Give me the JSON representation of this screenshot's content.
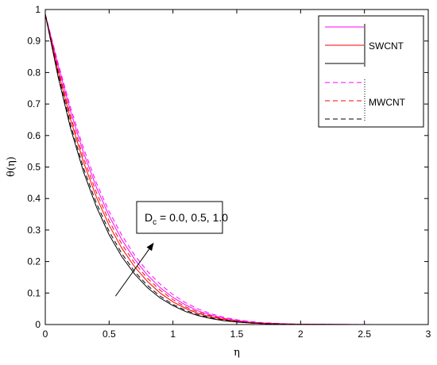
{
  "chart_data": {
    "type": "line",
    "title": "",
    "xlabel": "η",
    "ylabel": "θ(η)",
    "xlim": [
      0,
      3
    ],
    "ylim": [
      0,
      1
    ],
    "xticks": [
      0,
      0.5,
      1,
      1.5,
      2,
      2.5,
      3
    ],
    "xtick_labels": [
      "0",
      "0.5",
      "1",
      "1.5",
      "2",
      "2.5",
      "3"
    ],
    "yticks": [
      0,
      0.1,
      0.2,
      0.3,
      0.4,
      0.5,
      0.6,
      0.7,
      0.8,
      0.9,
      1
    ],
    "ytick_labels": [
      "0",
      "0.1",
      "0.2",
      "0.3",
      "0.4",
      "0.5",
      "0.6",
      "0.7",
      "0.8",
      "0.9",
      "1"
    ],
    "grid": false,
    "legend_position": "top-right",
    "legend_groups": [
      {
        "label": "SWCNT",
        "line_style": "solid",
        "colors": [
          "#ff00ff",
          "#ff0000",
          "#000000"
        ]
      },
      {
        "label": "MWCNT",
        "line_style": "dashed",
        "colors": [
          "#ff00ff",
          "#ff0000",
          "#000000"
        ]
      }
    ],
    "annotation": {
      "text_main": "D",
      "text_sub": "c",
      "text_rest": " = 0.0, 0.5, 1.0",
      "arrow_from": [
        0.55,
        0.09
      ],
      "arrow_to": [
        0.85,
        0.26
      ]
    },
    "x": [
      0,
      0.1,
      0.2,
      0.3,
      0.4,
      0.5,
      0.6,
      0.7,
      0.8,
      0.9,
      1.0,
      1.1,
      1.2,
      1.3,
      1.4,
      1.5,
      1.6,
      1.7,
      1.8,
      1.9,
      2.0,
      2.2,
      2.4,
      2.6,
      2.8,
      3.0
    ],
    "series": [
      {
        "group": "SWCNT",
        "dc": "1.0",
        "color": "#ff00ff",
        "style": "solid",
        "values": [
          0.985,
          0.823,
          0.674,
          0.545,
          0.436,
          0.345,
          0.269,
          0.207,
          0.157,
          0.117,
          0.086,
          0.062,
          0.043,
          0.03,
          0.02,
          0.013,
          0.008,
          0.005,
          0.003,
          0.002,
          0.001,
          0.0005,
          0.0002,
          0,
          0,
          0
        ]
      },
      {
        "group": "SWCNT",
        "dc": "0.5",
        "color": "#ff0000",
        "style": "solid",
        "values": [
          0.985,
          0.805,
          0.648,
          0.515,
          0.405,
          0.315,
          0.242,
          0.183,
          0.137,
          0.1,
          0.072,
          0.051,
          0.035,
          0.024,
          0.016,
          0.01,
          0.006,
          0.004,
          0.002,
          0.001,
          0.001,
          0.0003,
          0.0001,
          0,
          0,
          0
        ]
      },
      {
        "group": "SWCNT",
        "dc": "0.0",
        "color": "#000000",
        "style": "solid",
        "values": [
          0.985,
          0.787,
          0.62,
          0.484,
          0.374,
          0.285,
          0.215,
          0.16,
          0.117,
          0.084,
          0.06,
          0.041,
          0.028,
          0.019,
          0.012,
          0.008,
          0.005,
          0.003,
          0.002,
          0.001,
          0.0005,
          0.0002,
          0,
          0,
          0,
          0
        ]
      },
      {
        "group": "MWCNT",
        "dc": "1.0",
        "color": "#ff00ff",
        "style": "dashed",
        "values": [
          0.985,
          0.83,
          0.686,
          0.559,
          0.45,
          0.359,
          0.283,
          0.22,
          0.169,
          0.128,
          0.095,
          0.069,
          0.049,
          0.034,
          0.023,
          0.015,
          0.01,
          0.006,
          0.004,
          0.002,
          0.001,
          0.0006,
          0.0002,
          0,
          0,
          0
        ]
      },
      {
        "group": "MWCNT",
        "dc": "0.5",
        "color": "#ff0000",
        "style": "dashed",
        "values": [
          0.985,
          0.812,
          0.659,
          0.529,
          0.42,
          0.329,
          0.255,
          0.195,
          0.147,
          0.109,
          0.079,
          0.056,
          0.039,
          0.027,
          0.018,
          0.011,
          0.007,
          0.004,
          0.003,
          0.002,
          0.001,
          0.0004,
          0.0001,
          0,
          0,
          0
        ]
      },
      {
        "group": "MWCNT",
        "dc": "0.0",
        "color": "#000000",
        "style": "dashed",
        "values": [
          0.985,
          0.795,
          0.631,
          0.496,
          0.386,
          0.296,
          0.225,
          0.168,
          0.124,
          0.09,
          0.064,
          0.045,
          0.031,
          0.021,
          0.014,
          0.009,
          0.005,
          0.003,
          0.002,
          0.001,
          0.0006,
          0.0002,
          0,
          0,
          0,
          0
        ]
      }
    ]
  }
}
